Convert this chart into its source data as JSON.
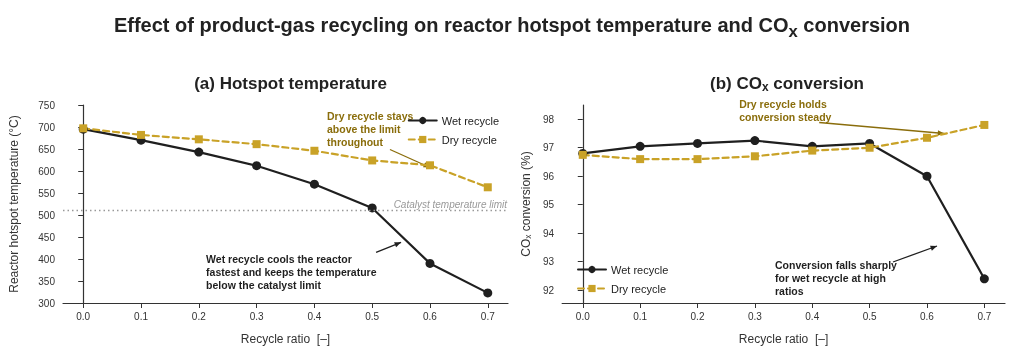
{
  "chart_data": [
    {
      "type": "line",
      "title": "(a) Hotspot temperature",
      "xlabel": "Recycle ratio  [–]",
      "ylabel": "Reactor hotspot temperature (°C)",
      "annotations": [
        "Effect of product-gas recycling on reactor hotspot temperature and CO$_{x}$ conversion",
        {
          "text": "Dry recycle stays\nabove the limit\nthroughout",
          "x": 0.6,
          "y": 608
        },
        {
          "text": "Wet recycle cools the reactor\nfastest and keeps the temperature\nbelow the catalyst limit",
          "x": 0.55,
          "y": 438
        }
      ],
      "x": [
        0,
        0.1,
        0.2,
        0.3,
        0.4,
        0.5,
        0.6,
        0.7
      ],
      "series": [
        {
          "name": "Wet recycle",
          "color": "#1f1f1f",
          "values": [
            695,
            670,
            643,
            612,
            570,
            516,
            390,
            323
          ],
          "marker": "circle",
          "line_style": "solid"
        },
        {
          "name": "Dry recycle",
          "color": "#c9a227",
          "values": [
            697,
            682,
            672,
            661,
            646,
            624,
            613,
            563
          ],
          "marker": "square",
          "line_style": "dashed"
        }
      ],
      "xlim": [
        -0.035,
        0.735
      ],
      "xticks": [
        {
          "value": 0,
          "label": "0.0"
        },
        0.1,
        0.2,
        0.3,
        0.4,
        0.5,
        0.6,
        0.7
      ],
      "ylim": [
        300,
        750
      ],
      "yticks": [
        300,
        350,
        400,
        450,
        500,
        550,
        600,
        650,
        700,
        750
      ],
      "ref_lines": [
        {
          "axis": "y",
          "value": 510,
          "label": "Catalyst temperature limit",
          "color": "#999999",
          "line_style": "dotted"
        }
      ],
      "legend": "top right"
    },
    {
      "type": "line",
      "title": "(b) CO$_{x}$ conversion",
      "xlabel": "Recycle ratio  [–]",
      "ylabel": "CO$_{x}$ conversion (%)",
      "annotations": [
        {
          "text": "Dry recycle holds\nconversion steady",
          "x": 0.63,
          "y": 97.5
        },
        "Conversion falls sharply\nfor wet recycle at high\nratios"
      ],
      "x": [
        0,
        0.1,
        0.2,
        0.3,
        0.4,
        0.5,
        0.6,
        0.7
      ],
      "series": [
        {
          "name": "Wet recycle",
          "color": "#1f1f1f",
          "values": [
            96.8,
            97.05,
            97.15,
            97.25,
            97.05,
            97.15,
            96.0,
            92.4
          ],
          "marker": "circle",
          "line_style": "solid"
        },
        {
          "name": "Dry recycle",
          "color": "#c9a227",
          "values": [
            96.75,
            96.6,
            96.6,
            96.7,
            96.9,
            97.0,
            97.35,
            97.8
          ],
          "marker": "square",
          "line_style": "dashed"
        }
      ],
      "xlim": [
        -0.036,
        0.736
      ],
      "xticks": [
        {
          "value": 0,
          "label": "0.0"
        },
        0.1,
        0.2,
        0.3,
        0.4,
        0.5,
        0.6,
        0.7
      ],
      "ylim": [
        91.55,
        98.5
      ],
      "yticks": [
        92,
        93,
        94,
        95,
        96,
        97,
        98
      ],
      "legend": "bottom left"
    }
  ]
}
